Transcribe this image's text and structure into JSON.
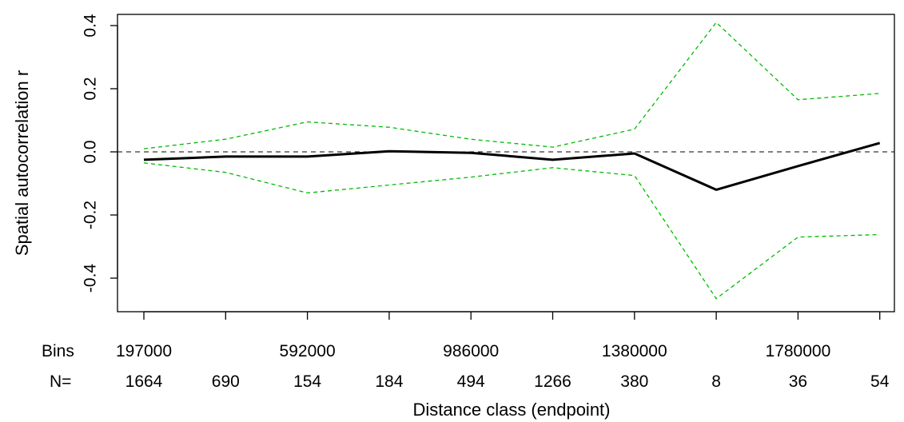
{
  "chart_data": {
    "type": "line",
    "xlabel": "Distance class (endpoint)",
    "ylabel": "Spatial autocorrelation r",
    "ylim": [
      -0.5,
      0.4
    ],
    "y_ticks": [
      "-0.4",
      "-0.2",
      "0.0",
      "0.2",
      "0.4"
    ],
    "y_tick_values": [
      -0.4,
      -0.2,
      0.0,
      0.2,
      0.4
    ],
    "x": [
      197000,
      394000,
      592000,
      789000,
      986000,
      1180000,
      1380000,
      1580000,
      1780000,
      1970000
    ],
    "bins_row": {
      "label": "Bins",
      "values": [
        "197000",
        "",
        "592000",
        "",
        "986000",
        "",
        "1380000",
        "",
        "1780000",
        ""
      ]
    },
    "n_row": {
      "label": "N=",
      "values": [
        "1664",
        "690",
        "154",
        "184",
        "494",
        "1266",
        "380",
        "8",
        "36",
        "54"
      ]
    },
    "series": [
      {
        "role": "r",
        "values": [
          -0.025,
          -0.015,
          -0.015,
          0.002,
          -0.003,
          -0.025,
          -0.005,
          -0.12,
          -0.045,
          0.028
        ],
        "color": "#000000",
        "style": "solid"
      },
      {
        "role": "upper",
        "values": [
          0.01,
          0.04,
          0.095,
          0.078,
          0.04,
          0.015,
          0.072,
          0.41,
          0.165,
          0.185
        ],
        "color": "#00bb00",
        "style": "dashed"
      },
      {
        "role": "lower",
        "values": [
          -0.035,
          -0.065,
          -0.13,
          -0.105,
          -0.08,
          -0.05,
          -0.075,
          -0.465,
          -0.27,
          -0.262
        ],
        "color": "#00bb00",
        "style": "dashed"
      }
    ],
    "reference_line": {
      "y": 0.0,
      "style": "dashed",
      "color": "#000000"
    },
    "grid": false,
    "legend": "none"
  }
}
